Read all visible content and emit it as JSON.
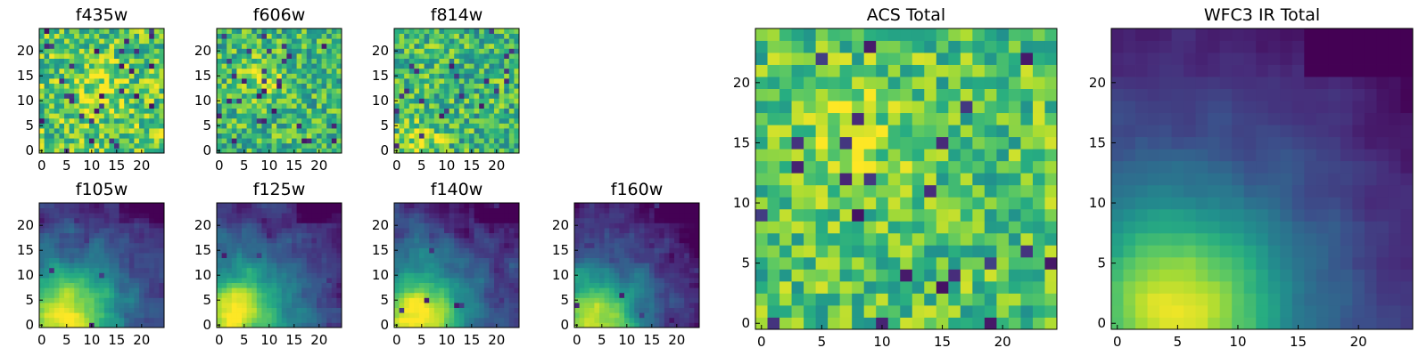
{
  "chart_data": {
    "type": "heatmap",
    "colormap": "viridis",
    "grid_size": 25,
    "x_ticks": [
      0,
      5,
      10,
      15,
      20
    ],
    "y_ticks": [
      0,
      5,
      10,
      15,
      20
    ],
    "panels": [
      {
        "name": "f435w",
        "title": "f435w",
        "xlim": [
          0,
          25
        ],
        "ylim": [
          0,
          25
        ],
        "pattern": "noisy",
        "bright_center": [
          12,
          12
        ],
        "level": 0.74,
        "noise": 0.26,
        "dark_rate": 0.05
      },
      {
        "name": "f606w",
        "title": "f606w",
        "xlim": [
          0,
          25
        ],
        "ylim": [
          0,
          25
        ],
        "pattern": "noisy",
        "bright_center": [
          8,
          15
        ],
        "level": 0.66,
        "noise": 0.24,
        "dark_rate": 0.04
      },
      {
        "name": "f814w",
        "title": "f814w",
        "xlim": [
          0,
          25
        ],
        "ylim": [
          0,
          25
        ],
        "pattern": "noisy",
        "bright_center": [
          5,
          2
        ],
        "level": 0.66,
        "noise": 0.26,
        "dark_rate": 0.05
      },
      {
        "name": "f105w",
        "title": "f105w",
        "xlim": [
          0,
          25
        ],
        "ylim": [
          0,
          25
        ],
        "pattern": "smooth",
        "bright_center": [
          5,
          2
        ],
        "level": 0.55,
        "noise": 0.15,
        "dark_rate": 0.01
      },
      {
        "name": "f125w",
        "title": "f125w",
        "xlim": [
          0,
          25
        ],
        "ylim": [
          0,
          25
        ],
        "pattern": "smooth",
        "bright_center": [
          4,
          2
        ],
        "level": 0.55,
        "noise": 0.15,
        "dark_rate": 0.01
      },
      {
        "name": "f140w",
        "title": "f140w",
        "xlim": [
          0,
          25
        ],
        "ylim": [
          0,
          25
        ],
        "pattern": "smooth",
        "bright_center": [
          4,
          2
        ],
        "level": 0.55,
        "noise": 0.16,
        "dark_rate": 0.02
      },
      {
        "name": "f160w",
        "title": "f160w",
        "xlim": [
          0,
          25
        ],
        "ylim": [
          0,
          25
        ],
        "pattern": "smooth",
        "bright_center": [
          3,
          1
        ],
        "level": 0.5,
        "noise": 0.16,
        "dark_rate": 0.02
      },
      {
        "name": "acs-total",
        "title": "ACS Total",
        "xlim": [
          0,
          25
        ],
        "ylim": [
          0,
          25
        ],
        "pattern": "noisy",
        "bright_center": [
          7,
          15
        ],
        "level": 0.72,
        "noise": 0.22,
        "dark_rate": 0.03
      },
      {
        "name": "wfc3-ir-total",
        "title": "WFC3 IR Total",
        "xlim": [
          0,
          25
        ],
        "ylim": [
          0,
          25
        ],
        "pattern": "smooth",
        "bright_center": [
          5,
          1
        ],
        "level": 0.5,
        "noise": 0.07,
        "dark_rate": 0.0
      }
    ]
  }
}
